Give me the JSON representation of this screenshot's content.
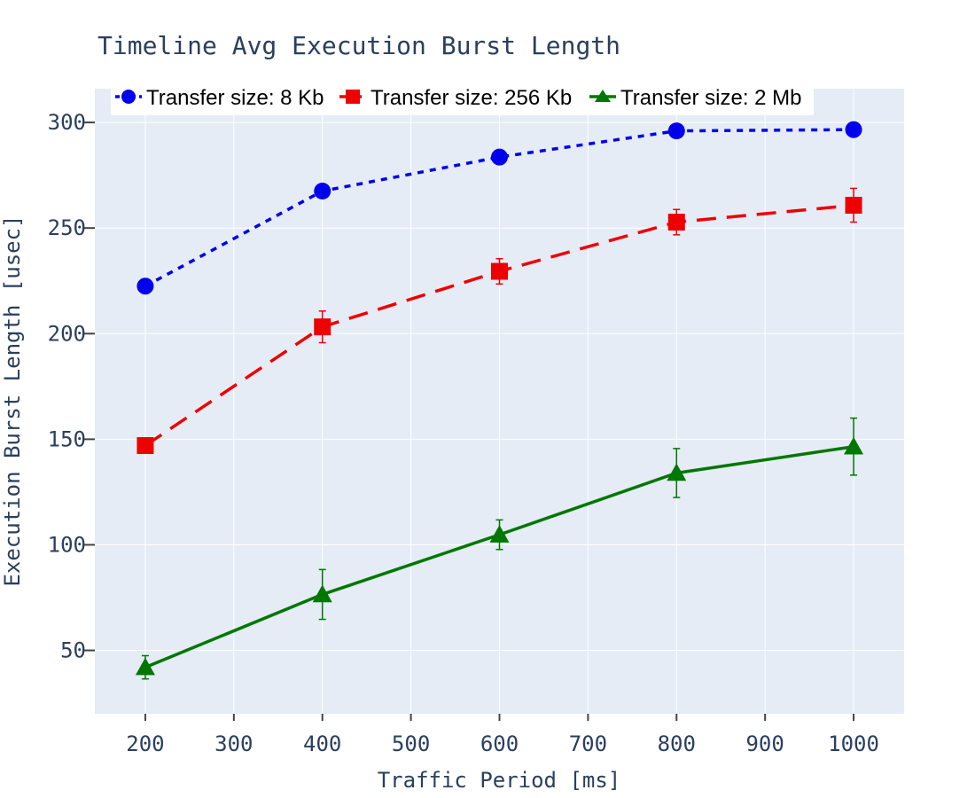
{
  "chart_data": {
    "type": "line",
    "title": "Timeline Avg Execution Burst Length",
    "xlabel": "Traffic Period [ms]",
    "ylabel": "Execution Burst Length [usec]",
    "x": [
      200,
      400,
      600,
      800,
      1000
    ],
    "xlim": [
      143,
      1057
    ],
    "ylim": [
      20,
      316
    ],
    "x_ticks": [
      200,
      300,
      400,
      500,
      600,
      700,
      800,
      900,
      1000
    ],
    "y_ticks": [
      50,
      100,
      150,
      200,
      250,
      300
    ],
    "grid": true,
    "legend_position": "top-left",
    "series": [
      {
        "name": "Transfer size: 8 Kb",
        "color": "#0000ee",
        "marker": "circle",
        "dash": "dot",
        "values": [
          222.5,
          267.5,
          283.6,
          296.0,
          296.6
        ],
        "error": [
          2.0,
          3.0,
          2.0,
          2.0,
          2.0
        ]
      },
      {
        "name": "Transfer size: 256 Kb",
        "color": "#ee0000",
        "marker": "square",
        "dash": "dash",
        "values": [
          147.0,
          203.2,
          229.5,
          252.8,
          260.8
        ],
        "error": [
          2.0,
          7.5,
          6.0,
          6.0,
          8.0
        ]
      },
      {
        "name": "Transfer size: 2 Mb",
        "color": "#007700",
        "marker": "triangle",
        "dash": "solid",
        "values": [
          42.0,
          76.5,
          104.8,
          134.0,
          146.5
        ],
        "error": [
          5.5,
          11.8,
          7.0,
          11.6,
          13.5
        ]
      }
    ]
  }
}
